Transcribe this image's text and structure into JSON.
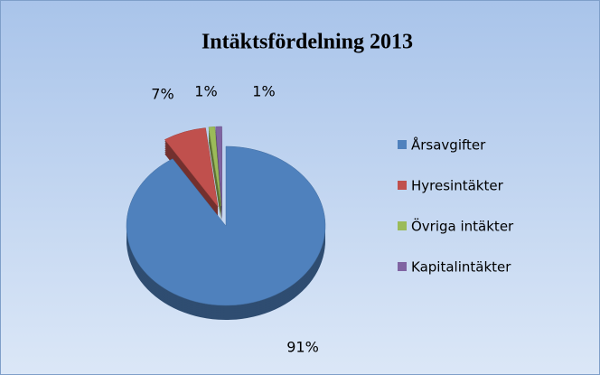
{
  "chart_data": {
    "type": "pie",
    "title": "Intäktsfördelning 2013",
    "categories": [
      "Årsavgifter",
      "Hyresintäkter",
      "Övriga intäkter",
      "Kapitalintäkter"
    ],
    "values": [
      91,
      7,
      1,
      1
    ],
    "value_labels": [
      "91%",
      "7%",
      "1%",
      "1%"
    ],
    "colors": [
      "#4f81bd",
      "#c0504d",
      "#9bbb59",
      "#8064a2"
    ],
    "legend": "right"
  }
}
